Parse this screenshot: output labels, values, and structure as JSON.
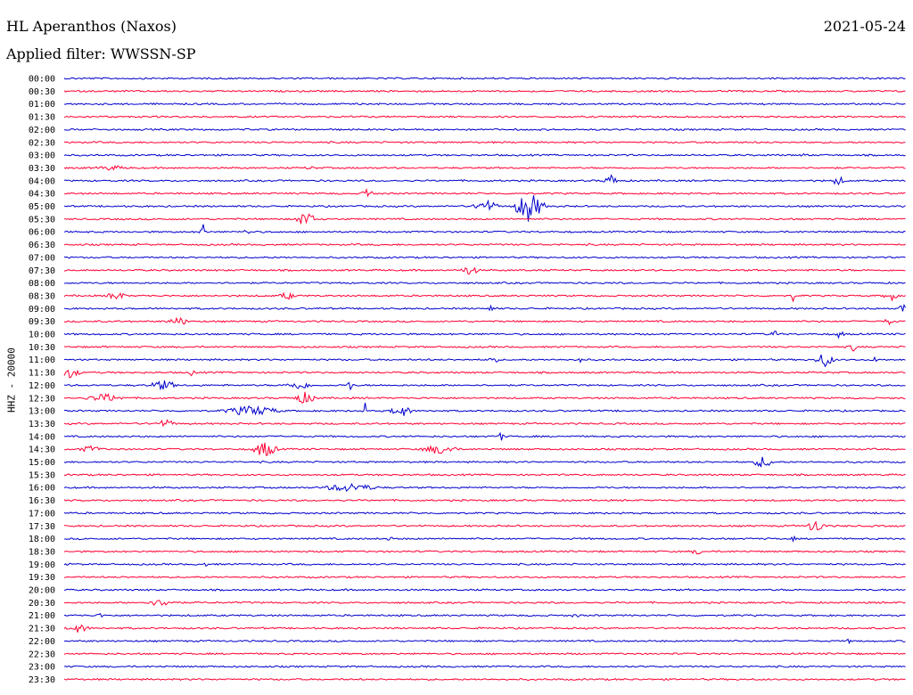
{
  "header": {
    "station": "HL Aperanthos (Naxos)",
    "date": "2021-05-24",
    "filter": "Applied filter: WWSSN-SP",
    "channel_label": "HHZ - 20000"
  },
  "colors": {
    "blue": "#0000cc",
    "red": "#ff0033"
  },
  "chart_data": {
    "type": "line",
    "title": "HL Aperanthos (Naxos)",
    "subtitle": "Applied filter: WWSSN-SP",
    "date": "2021-05-24",
    "ylabel": "HHZ - 20000",
    "xlabel": "",
    "grid": false,
    "trace_colors": [
      "#0000cc",
      "#ff0033"
    ],
    "rows": [
      "00:00",
      "00:30",
      "01:00",
      "01:30",
      "02:00",
      "02:30",
      "03:00",
      "03:30",
      "04:00",
      "04:30",
      "05:00",
      "05:30",
      "06:00",
      "06:30",
      "07:00",
      "07:30",
      "08:00",
      "08:30",
      "09:00",
      "09:30",
      "10:00",
      "10:30",
      "11:00",
      "11:30",
      "12:00",
      "12:30",
      "13:00",
      "13:30",
      "14:00",
      "14:30",
      "15:00",
      "15:30",
      "16:00",
      "16:30",
      "17:00",
      "17:30",
      "18:00",
      "18:30",
      "19:00",
      "19:30",
      "20:00",
      "20:30",
      "21:00",
      "21:30",
      "22:00",
      "22:30",
      "23:00",
      "23:30"
    ]
  }
}
